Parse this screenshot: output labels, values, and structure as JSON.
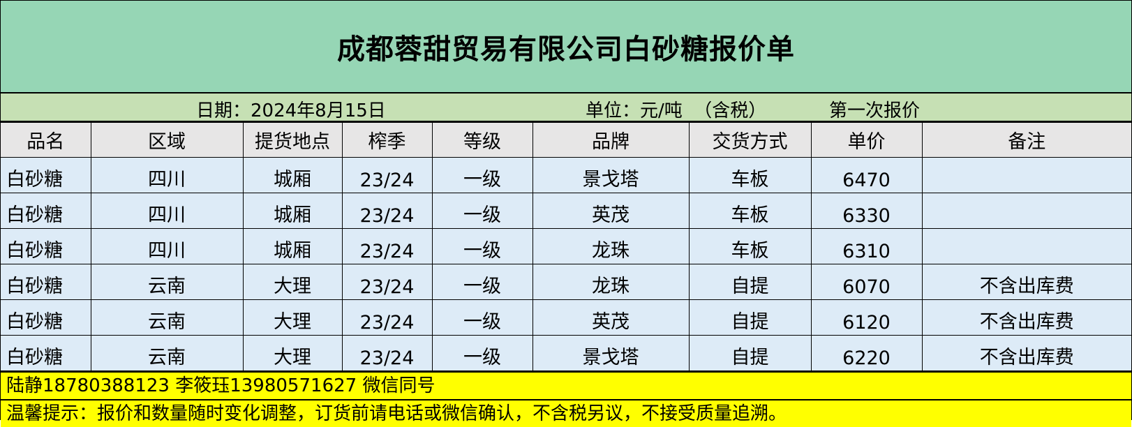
{
  "title": "成都蓉甜贸易有限公司白砂糖报价单",
  "subheader": {
    "date": "日期：2024年8月15日",
    "unit": "单位：元/吨  （含税）",
    "round": "第一次报价"
  },
  "columns": [
    "品名",
    "区域",
    "提货地点",
    "榨季",
    "等级",
    "品牌",
    "交货方式",
    "单价",
    "备注"
  ],
  "rows": [
    [
      "白砂糖",
      "四川",
      "城厢",
      "23/24",
      "一级",
      "景戈塔",
      "车板",
      "6470",
      ""
    ],
    [
      "白砂糖",
      "四川",
      "城厢",
      "23/24",
      "一级",
      "英茂",
      "车板",
      "6330",
      ""
    ],
    [
      "白砂糖",
      "四川",
      "城厢",
      "23/24",
      "一级",
      "龙珠",
      "车板",
      "6310",
      ""
    ],
    [
      "白砂糖",
      "云南",
      "大理",
      "23/24",
      "一级",
      "龙珠",
      "自提",
      "6070",
      "不含出库费"
    ],
    [
      "白砂糖",
      "云南",
      "大理",
      "23/24",
      "一级",
      "英茂",
      "自提",
      "6120",
      "不含出库费"
    ],
    [
      "白砂糖",
      "云南",
      "大理",
      "23/24",
      "一级",
      "景戈塔",
      "自提",
      "6220",
      "不含出库费"
    ]
  ],
  "footer": {
    "contacts": "陆静18780388123   李筱珏13980571627 微信同号",
    "notice": "温馨提示：报价和数量随时变化调整，订货前请电话或微信确认，不含税另议，不接受质量追溯。"
  },
  "colors": {
    "title_bg": "#96d6b5",
    "subheader_bg": "#c6e0b4",
    "header_bg": "#e7e6e6",
    "row_bg": "#ddebf7",
    "footer_bg": "#ffff00"
  }
}
